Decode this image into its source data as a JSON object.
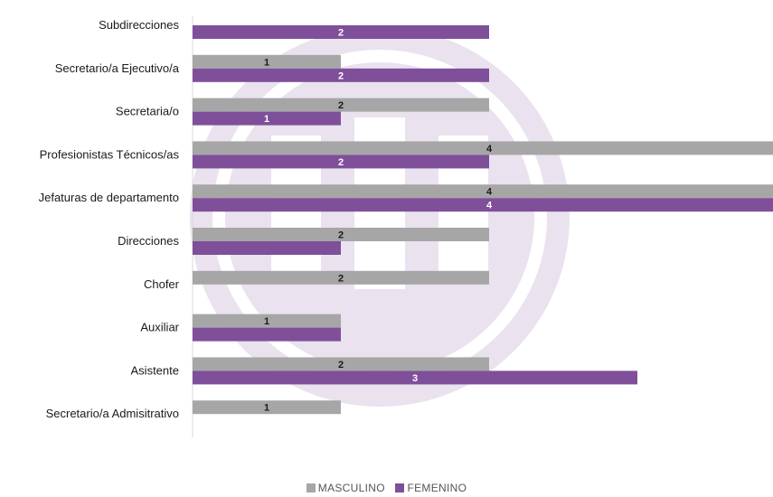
{
  "chart_data": {
    "type": "bar",
    "orientation": "horizontal",
    "categories": [
      "Subdirecciones",
      "Secretario/a Ejecutivo/a",
      "Secretaria/o",
      "Profesionistas Técnicos/as",
      "Jefaturas de departamento",
      "Direcciones",
      "Chofer",
      "Auxiliar",
      "Asistente",
      "Secretario/a Admisitrativo"
    ],
    "series": [
      {
        "name": "MASCULINO",
        "color": "#a6a6a6",
        "values": [
          null,
          1,
          2,
          4,
          4,
          2,
          2,
          1,
          2,
          1
        ],
        "labels": [
          "",
          "1",
          "2",
          "4",
          "4",
          "2",
          "2",
          "1",
          "2",
          "1"
        ]
      },
      {
        "name": "FEMENINO",
        "color": "#7f4f9a",
        "values": [
          2,
          2,
          1,
          2,
          4,
          1,
          null,
          1,
          3,
          null
        ],
        "labels": [
          "2",
          "2",
          "1",
          "2",
          "4",
          "",
          "",
          "",
          "3",
          ""
        ]
      }
    ],
    "xlim": [
      0,
      4
    ],
    "legend_position": "bottom",
    "grid": false,
    "watermark": "faint purple circular logo behind the bars"
  }
}
